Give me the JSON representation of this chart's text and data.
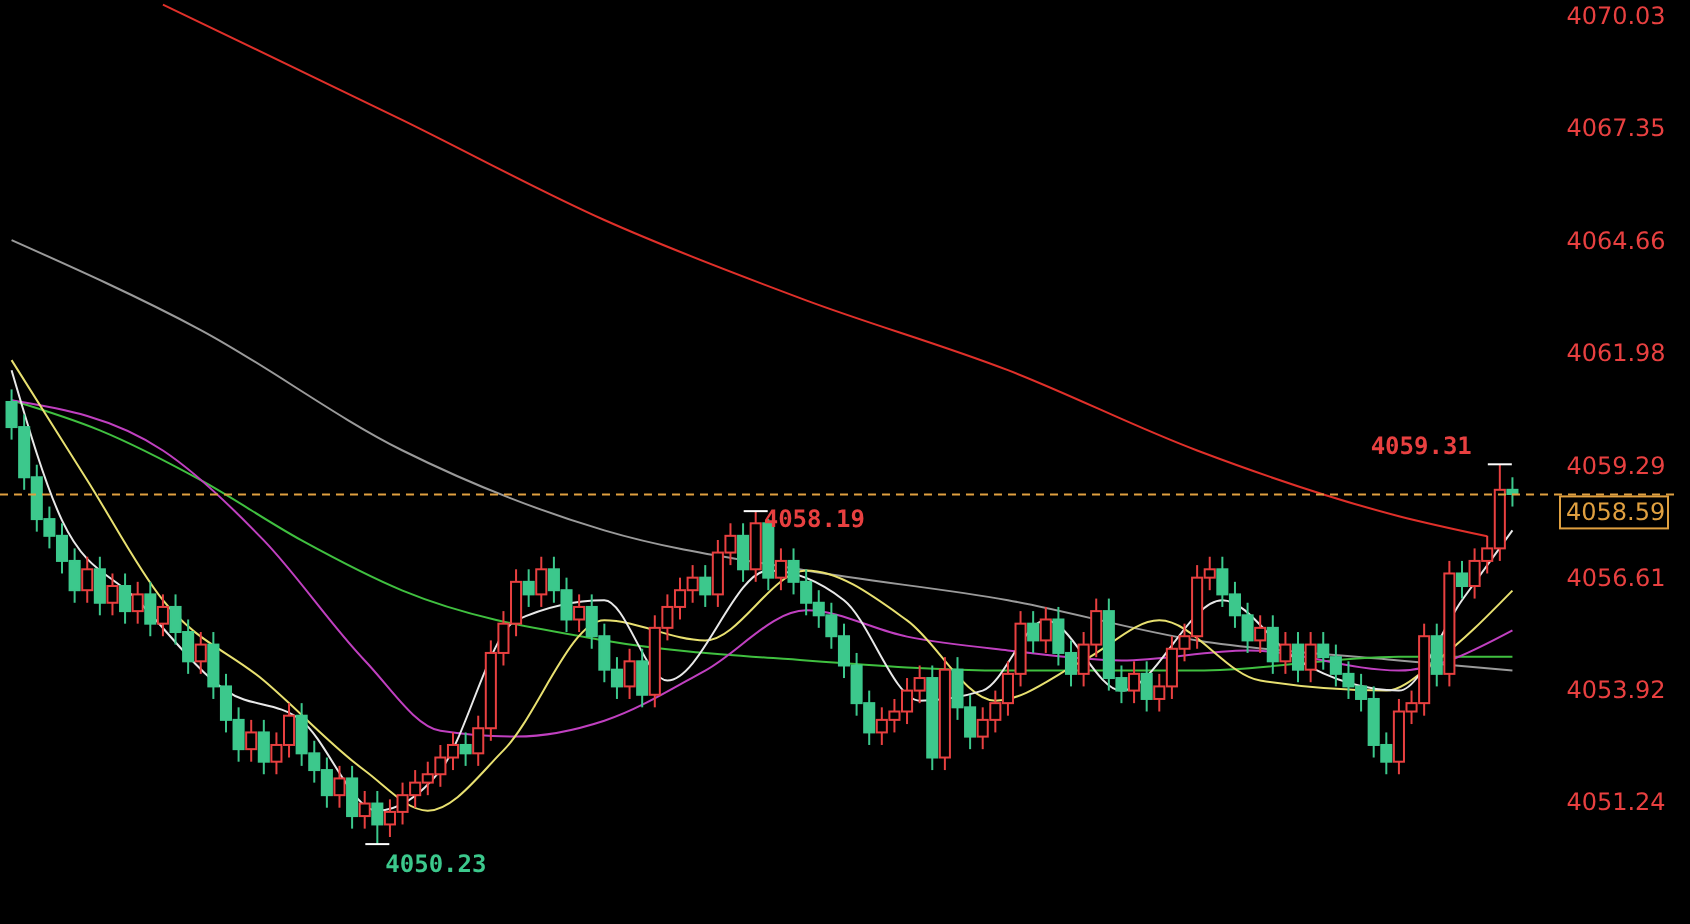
{
  "chart_data": {
    "type": "candlestick",
    "categories": [
      null,
      null,
      null,
      null,
      null,
      null,
      null,
      null,
      null,
      null,
      null,
      null,
      null,
      null,
      null,
      null,
      null,
      null,
      null,
      null,
      null,
      null,
      null,
      null,
      null,
      null,
      null,
      null,
      null,
      null,
      null,
      null,
      null,
      null,
      null,
      null,
      null,
      null,
      null,
      null,
      null,
      null,
      null,
      null,
      null,
      null,
      null,
      null,
      null,
      null,
      null,
      null,
      null,
      null,
      null,
      null,
      null,
      null,
      null,
      null,
      null,
      null,
      null,
      null,
      null,
      null,
      null,
      null,
      null,
      null,
      null,
      null,
      null,
      null,
      null,
      null,
      null,
      null,
      null,
      null,
      null,
      null,
      null,
      null,
      null,
      null,
      null,
      null,
      null,
      null,
      null,
      null,
      null,
      null,
      null,
      null,
      null,
      null,
      null,
      null,
      null,
      null,
      null,
      null,
      null,
      null,
      null,
      null,
      null,
      null,
      null,
      null,
      null,
      null,
      null,
      null,
      null,
      null,
      null,
      null
    ],
    "ohlc": [
      [
        4060.8,
        4061.1,
        4059.9,
        4060.2
      ],
      [
        4060.2,
        4060.5,
        4058.7,
        4059.0
      ],
      [
        4059.0,
        4059.3,
        4057.7,
        4058.0
      ],
      [
        4058.0,
        4058.3,
        4057.3,
        4057.6
      ],
      [
        4057.6,
        4057.9,
        4056.7,
        4057.0
      ],
      [
        4057.0,
        4057.3,
        4056.0,
        4056.3
      ],
      [
        4056.3,
        4057.1,
        4056.0,
        4056.8
      ],
      [
        4056.8,
        4057.1,
        4055.7,
        4056.0
      ],
      [
        4056.0,
        4056.7,
        4055.7,
        4056.4
      ],
      [
        4056.4,
        4056.7,
        4055.5,
        4055.8
      ],
      [
        4055.8,
        4056.5,
        4055.5,
        4056.2
      ],
      [
        4056.2,
        4056.5,
        4055.2,
        4055.5
      ],
      [
        4055.5,
        4056.2,
        4055.2,
        4055.9
      ],
      [
        4055.9,
        4056.2,
        4055.0,
        4055.3
      ],
      [
        4055.3,
        4055.6,
        4054.3,
        4054.6
      ],
      [
        4054.6,
        4055.3,
        4054.3,
        4055.0
      ],
      [
        4055.0,
        4055.3,
        4053.7,
        4054.0
      ],
      [
        4054.0,
        4054.3,
        4052.9,
        4053.2
      ],
      [
        4053.2,
        4053.5,
        4052.2,
        4052.5
      ],
      [
        4052.5,
        4053.2,
        4052.2,
        4052.9
      ],
      [
        4052.9,
        4053.2,
        4051.9,
        4052.2
      ],
      [
        4052.2,
        4052.9,
        4051.9,
        4052.6
      ],
      [
        4052.6,
        4053.6,
        4052.3,
        4053.3
      ],
      [
        4053.3,
        4053.6,
        4052.1,
        4052.4
      ],
      [
        4052.4,
        4052.7,
        4051.7,
        4052.0
      ],
      [
        4052.0,
        4052.3,
        4051.1,
        4051.4
      ],
      [
        4051.4,
        4052.1,
        4051.1,
        4051.8
      ],
      [
        4051.8,
        4052.1,
        4050.6,
        4050.9
      ],
      [
        4050.9,
        4051.5,
        4050.6,
        4051.2
      ],
      [
        4051.2,
        4051.5,
        4050.23,
        4050.7
      ],
      [
        4050.7,
        4051.3,
        4050.4,
        4051.0
      ],
      [
        4051.0,
        4051.7,
        4050.7,
        4051.4
      ],
      [
        4051.4,
        4052.0,
        4051.1,
        4051.7
      ],
      [
        4051.7,
        4052.2,
        4051.4,
        4051.9
      ],
      [
        4051.9,
        4052.6,
        4051.6,
        4052.3
      ],
      [
        4052.3,
        4052.9,
        4052.0,
        4052.6
      ],
      [
        4052.6,
        4052.9,
        4052.1,
        4052.4
      ],
      [
        4052.4,
        4053.3,
        4052.1,
        4053.0
      ],
      [
        4053.0,
        4055.1,
        4052.7,
        4054.8
      ],
      [
        4054.8,
        4055.8,
        4054.5,
        4055.5
      ],
      [
        4055.5,
        4056.8,
        4055.2,
        4056.5
      ],
      [
        4056.5,
        4056.8,
        4055.9,
        4056.2
      ],
      [
        4056.2,
        4057.1,
        4055.9,
        4056.8
      ],
      [
        4056.8,
        4057.1,
        4056.0,
        4056.3
      ],
      [
        4056.3,
        4056.6,
        4055.3,
        4055.6
      ],
      [
        4055.6,
        4056.2,
        4055.3,
        4055.9
      ],
      [
        4055.9,
        4056.2,
        4054.9,
        4055.2
      ],
      [
        4055.2,
        4055.5,
        4054.1,
        4054.4
      ],
      [
        4054.4,
        4054.7,
        4053.7,
        4054.0
      ],
      [
        4054.0,
        4054.9,
        4053.7,
        4054.6
      ],
      [
        4054.6,
        4054.9,
        4053.5,
        4053.8
      ],
      [
        4053.8,
        4055.7,
        4053.5,
        4055.4
      ],
      [
        4055.4,
        4056.2,
        4055.1,
        4055.9
      ],
      [
        4055.9,
        4056.6,
        4055.6,
        4056.3
      ],
      [
        4056.3,
        4056.9,
        4056.0,
        4056.6
      ],
      [
        4056.6,
        4056.9,
        4055.9,
        4056.2
      ],
      [
        4056.2,
        4057.5,
        4055.9,
        4057.2
      ],
      [
        4057.2,
        4057.9,
        4056.9,
        4057.6
      ],
      [
        4057.6,
        4057.9,
        4056.5,
        4056.8
      ],
      [
        4056.8,
        4058.19,
        4056.5,
        4057.9
      ],
      [
        4057.9,
        4058.0,
        4056.3,
        4056.6
      ],
      [
        4056.6,
        4057.3,
        4056.3,
        4057.0
      ],
      [
        4057.0,
        4057.3,
        4056.2,
        4056.5
      ],
      [
        4056.5,
        4056.8,
        4055.7,
        4056.0
      ],
      [
        4056.0,
        4056.3,
        4055.4,
        4055.7
      ],
      [
        4055.7,
        4056.0,
        4054.9,
        4055.2
      ],
      [
        4055.2,
        4055.5,
        4054.2,
        4054.5
      ],
      [
        4054.5,
        4054.8,
        4053.3,
        4053.6
      ],
      [
        4053.6,
        4053.9,
        4052.6,
        4052.9
      ],
      [
        4052.9,
        4053.5,
        4052.6,
        4053.2
      ],
      [
        4053.2,
        4053.7,
        4052.9,
        4053.4
      ],
      [
        4053.4,
        4054.2,
        4053.1,
        4053.9
      ],
      [
        4053.9,
        4054.5,
        4053.6,
        4054.2
      ],
      [
        4054.2,
        4054.5,
        4052.0,
        4052.3
      ],
      [
        4052.3,
        4054.7,
        4052.0,
        4054.4
      ],
      [
        4054.4,
        4054.7,
        4053.2,
        4053.5
      ],
      [
        4053.5,
        4053.8,
        4052.5,
        4052.8
      ],
      [
        4052.8,
        4053.5,
        4052.5,
        4053.2
      ],
      [
        4053.2,
        4053.9,
        4052.9,
        4053.6
      ],
      [
        4053.6,
        4054.6,
        4053.3,
        4054.3
      ],
      [
        4054.3,
        4055.8,
        4054.0,
        4055.5
      ],
      [
        4055.5,
        4055.8,
        4054.8,
        4055.1
      ],
      [
        4055.1,
        4055.9,
        4054.8,
        4055.6
      ],
      [
        4055.6,
        4055.9,
        4054.5,
        4054.8
      ],
      [
        4054.8,
        4055.1,
        4054.0,
        4054.3
      ],
      [
        4054.3,
        4055.3,
        4054.0,
        4055.0
      ],
      [
        4055.0,
        4056.1,
        4054.7,
        4055.8
      ],
      [
        4055.8,
        4056.1,
        4053.9,
        4054.2
      ],
      [
        4054.2,
        4054.5,
        4053.6,
        4053.9
      ],
      [
        4053.9,
        4054.6,
        4053.6,
        4054.3
      ],
      [
        4054.3,
        4054.6,
        4053.4,
        4053.7
      ],
      [
        4053.7,
        4054.3,
        4053.4,
        4054.0
      ],
      [
        4054.0,
        4055.2,
        4053.7,
        4054.9
      ],
      [
        4054.9,
        4055.5,
        4054.6,
        4055.2
      ],
      [
        4055.2,
        4056.9,
        4054.9,
        4056.6
      ],
      [
        4056.6,
        4057.1,
        4056.3,
        4056.8
      ],
      [
        4056.8,
        4057.1,
        4055.9,
        4056.2
      ],
      [
        4056.2,
        4056.5,
        4055.4,
        4055.7
      ],
      [
        4055.7,
        4056.0,
        4054.8,
        4055.1
      ],
      [
        4055.1,
        4055.7,
        4054.8,
        4055.4
      ],
      [
        4055.4,
        4055.7,
        4054.3,
        4054.6
      ],
      [
        4054.6,
        4055.3,
        4054.3,
        4055.0
      ],
      [
        4055.0,
        4055.3,
        4054.1,
        4054.4
      ],
      [
        4054.4,
        4055.3,
        4054.1,
        4055.0
      ],
      [
        4055.0,
        4055.3,
        4054.4,
        4054.7
      ],
      [
        4054.7,
        4055.0,
        4054.0,
        4054.3
      ],
      [
        4054.3,
        4054.6,
        4053.7,
        4054.0
      ],
      [
        4054.0,
        4054.3,
        4053.4,
        4053.7
      ],
      [
        4053.7,
        4054.0,
        4052.3,
        4052.6
      ],
      [
        4052.6,
        4052.9,
        4051.9,
        4052.2
      ],
      [
        4052.2,
        4053.7,
        4051.9,
        4053.4
      ],
      [
        4053.4,
        4053.9,
        4053.1,
        4053.6
      ],
      [
        4053.6,
        4055.5,
        4053.3,
        4055.2
      ],
      [
        4055.2,
        4055.5,
        4054.0,
        4054.3
      ],
      [
        4054.3,
        4057.0,
        4054.0,
        4056.7
      ],
      [
        4056.7,
        4057.0,
        4056.1,
        4056.4
      ],
      [
        4056.4,
        4057.3,
        4056.1,
        4057.0
      ],
      [
        4057.0,
        4057.6,
        4056.7,
        4057.3
      ],
      [
        4057.3,
        4059.31,
        4057.0,
        4058.7
      ],
      [
        4058.7,
        4059.0,
        4058.3,
        4058.6
      ]
    ],
    "series": [
      {
        "type": "line",
        "color": "#e0302a",
        "values": [
          null,
          null,
          null,
          null,
          null,
          null,
          null,
          null,
          null,
          null,
          null,
          null,
          4070.3,
          null,
          null,
          null,
          null,
          null,
          null,
          null,
          null,
          null,
          null,
          null,
          null,
          null,
          null,
          null,
          null,
          null,
          null,
          4067.54,
          null,
          null,
          null,
          null,
          null,
          null,
          null,
          null,
          null,
          null,
          null,
          null,
          null,
          null,
          null,
          4065.15,
          null,
          null,
          null,
          null,
          null,
          null,
          null,
          null,
          null,
          null,
          null,
          null,
          null,
          null,
          null,
          4063.23,
          null,
          null,
          null,
          null,
          null,
          null,
          null,
          null,
          null,
          null,
          null,
          null,
          null,
          null,
          null,
          4061.56,
          null,
          null,
          null,
          null,
          null,
          null,
          null,
          null,
          null,
          null,
          null,
          null,
          null,
          null,
          4059.64,
          null,
          null,
          null,
          null,
          null,
          null,
          null,
          null,
          null,
          null,
          null,
          null,
          null,
          null,
          null,
          4058.07,
          null,
          null,
          null,
          null,
          null,
          null,
          4057.59,
          null,
          null
        ]
      },
      {
        "type": "line",
        "color": "#9a9a9a",
        "values": [
          4064.67,
          null,
          null,
          null,
          null,
          null,
          null,
          null,
          null,
          null,
          null,
          null,
          null,
          null,
          null,
          4062.52,
          null,
          null,
          null,
          null,
          null,
          null,
          null,
          null,
          null,
          null,
          null,
          null,
          null,
          null,
          null,
          4059.64,
          null,
          null,
          null,
          null,
          null,
          null,
          null,
          null,
          null,
          null,
          null,
          null,
          null,
          null,
          null,
          4057.73,
          null,
          null,
          null,
          null,
          null,
          null,
          null,
          null,
          null,
          null,
          null,
          null,
          null,
          null,
          null,
          4056.77,
          null,
          null,
          null,
          null,
          null,
          null,
          null,
          null,
          null,
          null,
          null,
          null,
          null,
          null,
          null,
          4056.06,
          null,
          null,
          null,
          null,
          null,
          null,
          null,
          null,
          null,
          null,
          null,
          null,
          null,
          null,
          4055.1,
          null,
          null,
          null,
          null,
          null,
          null,
          null,
          null,
          null,
          null,
          null,
          null,
          null,
          null,
          null,
          4054.62,
          null,
          null,
          null,
          null,
          null,
          null,
          null,
          null,
          4054.38
        ]
      },
      {
        "type": "line",
        "color": "#40c040",
        "values": [
          4060.84,
          null,
          null,
          null,
          null,
          null,
          null,
          4060.12,
          null,
          null,
          null,
          null,
          null,
          null,
          null,
          4058.93,
          null,
          null,
          null,
          null,
          null,
          null,
          null,
          4057.49,
          null,
          null,
          null,
          null,
          null,
          null,
          null,
          4056.29,
          null,
          null,
          null,
          null,
          null,
          null,
          null,
          null,
          null,
          null,
          null,
          null,
          null,
          null,
          null,
          4055.1,
          null,
          null,
          null,
          null,
          null,
          null,
          null,
          null,
          null,
          null,
          null,
          null,
          null,
          null,
          null,
          4054.62,
          null,
          null,
          null,
          null,
          null,
          null,
          null,
          null,
          null,
          null,
          null,
          null,
          null,
          null,
          null,
          4054.38,
          null,
          null,
          null,
          null,
          null,
          null,
          null,
          null,
          null,
          null,
          null,
          null,
          null,
          null,
          4054.38,
          null,
          null,
          null,
          null,
          null,
          null,
          null,
          null,
          null,
          null,
          null,
          null,
          null,
          null,
          null,
          4054.71,
          null,
          null,
          null,
          null,
          null,
          null,
          null,
          null,
          4054.71
        ]
      },
      {
        "type": "line",
        "color": "#c040c0",
        "values": [
          4060.84,
          null,
          null,
          null,
          null,
          null,
          null,
          null,
          null,
          null,
          null,
          null,
          4059.64,
          null,
          null,
          null,
          null,
          null,
          null,
          null,
          4057.49,
          null,
          null,
          null,
          null,
          null,
          null,
          null,
          4054.62,
          null,
          null,
          null,
          null,
          null,
          4052.94,
          null,
          null,
          null,
          null,
          null,
          4052.8,
          null,
          null,
          null,
          null,
          null,
          null,
          4053.18,
          null,
          null,
          null,
          null,
          null,
          null,
          null,
          4054.38,
          null,
          null,
          null,
          null,
          null,
          null,
          null,
          4055.82,
          null,
          null,
          null,
          null,
          null,
          null,
          null,
          4055.19,
          null,
          null,
          null,
          null,
          null,
          null,
          null,
          4054.86,
          null,
          null,
          null,
          null,
          null,
          null,
          null,
          null,
          4054.62,
          null,
          null,
          null,
          null,
          null,
          null,
          null,
          null,
          null,
          4054.86,
          null,
          null,
          null,
          null,
          null,
          null,
          null,
          null,
          null,
          null,
          null,
          4054.38,
          null,
          null,
          null,
          null,
          null,
          null,
          null,
          null,
          4055.34
        ]
      },
      {
        "type": "line",
        "color": "#e8e070",
        "values": [
          4061.8,
          null,
          null,
          null,
          null,
          null,
          4058.93,
          null,
          null,
          null,
          null,
          null,
          4056.06,
          null,
          null,
          null,
          null,
          null,
          null,
          null,
          4054.14,
          null,
          null,
          null,
          null,
          null,
          null,
          null,
          4051.99,
          null,
          null,
          null,
          null,
          4051.03,
          null,
          null,
          null,
          null,
          null,
          4052.47,
          null,
          null,
          null,
          null,
          null,
          null,
          null,
          4055.58,
          null,
          null,
          null,
          null,
          null,
          null,
          null,
          4055.1,
          null,
          null,
          null,
          null,
          null,
          null,
          null,
          4056.77,
          null,
          null,
          null,
          null,
          null,
          null,
          null,
          4055.58,
          null,
          null,
          null,
          null,
          null,
          null,
          4053.66,
          null,
          null,
          null,
          null,
          null,
          null,
          4054.62,
          null,
          null,
          null,
          null,
          null,
          4055.58,
          null,
          null,
          null,
          null,
          null,
          null,
          null,
          4054.14,
          null,
          null,
          null,
          null,
          null,
          null,
          null,
          null,
          null,
          4053.9,
          null,
          null,
          null,
          4054.62,
          null,
          null,
          null,
          null,
          null,
          4056.29
        ]
      },
      {
        "type": "line",
        "color": "#e8e8e8",
        "values": [
          4061.56,
          null,
          null,
          null,
          4057.97,
          null,
          null,
          null,
          null,
          null,
          4056.06,
          null,
          null,
          null,
          null,
          null,
          null,
          4053.9,
          null,
          null,
          null,
          null,
          null,
          4053.18,
          null,
          null,
          null,
          null,
          null,
          4051.03,
          null,
          null,
          null,
          null,
          4051.99,
          null,
          null,
          null,
          null,
          null,
          4055.58,
          null,
          null,
          null,
          null,
          null,
          null,
          4056.06,
          null,
          null,
          null,
          null,
          4054.14,
          null,
          null,
          null,
          null,
          null,
          null,
          null,
          4056.77,
          null,
          null,
          null,
          null,
          null,
          4056.06,
          null,
          null,
          null,
          null,
          null,
          4053.66,
          null,
          null,
          null,
          null,
          4053.9,
          null,
          null,
          null,
          null,
          4055.58,
          null,
          null,
          null,
          null,
          null,
          4053.9,
          null,
          null,
          null,
          null,
          null,
          null,
          null,
          4056.06,
          null,
          null,
          null,
          null,
          null,
          4054.62,
          null,
          null,
          null,
          null,
          null,
          null,
          null,
          4053.9,
          null,
          null,
          null,
          null,
          4056.06,
          null,
          null,
          null,
          4057.73
        ]
      }
    ],
    "ylim": [
      4048.32,
      4070.41
    ],
    "yticks": [
      4051.24,
      4053.92,
      4056.61,
      4059.29,
      4061.98,
      4064.66,
      4067.35,
      4070.03
    ],
    "ref_lines": [
      {
        "axis": "y",
        "value": 4058.59,
        "label": "4058.59",
        "color": "#e0a040",
        "line_style": "dashed"
      }
    ],
    "annotations": [
      "4059.31",
      "4058.19",
      "4050.23"
    ],
    "tick_labels": "y",
    "grid": false
  }
}
